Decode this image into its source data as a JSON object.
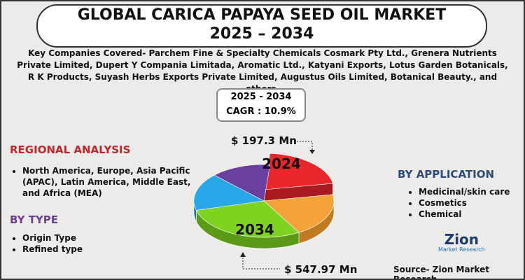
{
  "header": {
    "title_line1": "GLOBAL CARICA PAPAYA SEED OIL MARKET",
    "title_line2": "2025 – 2034"
  },
  "companies": "Key Companies Covered- Parchem Fine & Specialty Chemicals Cosmark Pty Ltd., Grenera Nutrients Private Limited, Dupert Y Compania Limitada, Aromatic Ltd., Katyani Exports, Lotus Garden Botanicals, R K Products, Suyash Herbs Exports Private Limited, Augustus Oils Limited, Botanical Beauty., and others.",
  "cagr_box": {
    "period": "2025 - 2034",
    "cagr": "CAGR : 10.9%"
  },
  "market": {
    "start_value": "$ 197.3 Mn",
    "start_year": "2024",
    "end_value": "$ 547.97 Mn",
    "end_year": "2034"
  },
  "regional": {
    "heading": "REGIONAL ANALYSIS",
    "items": [
      "North America, Europe, Asia Pacific (APAC), Latin America, Middle East, and Africa (MEA)"
    ]
  },
  "by_type": {
    "heading": "BY TYPE",
    "items": [
      "Origin Type",
      "Refined type"
    ]
  },
  "by_application": {
    "heading": "BY APPLICATION",
    "items": [
      "Medicinal/skin care",
      "Cosmetics",
      "Chemical"
    ]
  },
  "logo": {
    "name": "Zion",
    "sub": "Market Research"
  },
  "source": "Source- Zion Market Research"
}
